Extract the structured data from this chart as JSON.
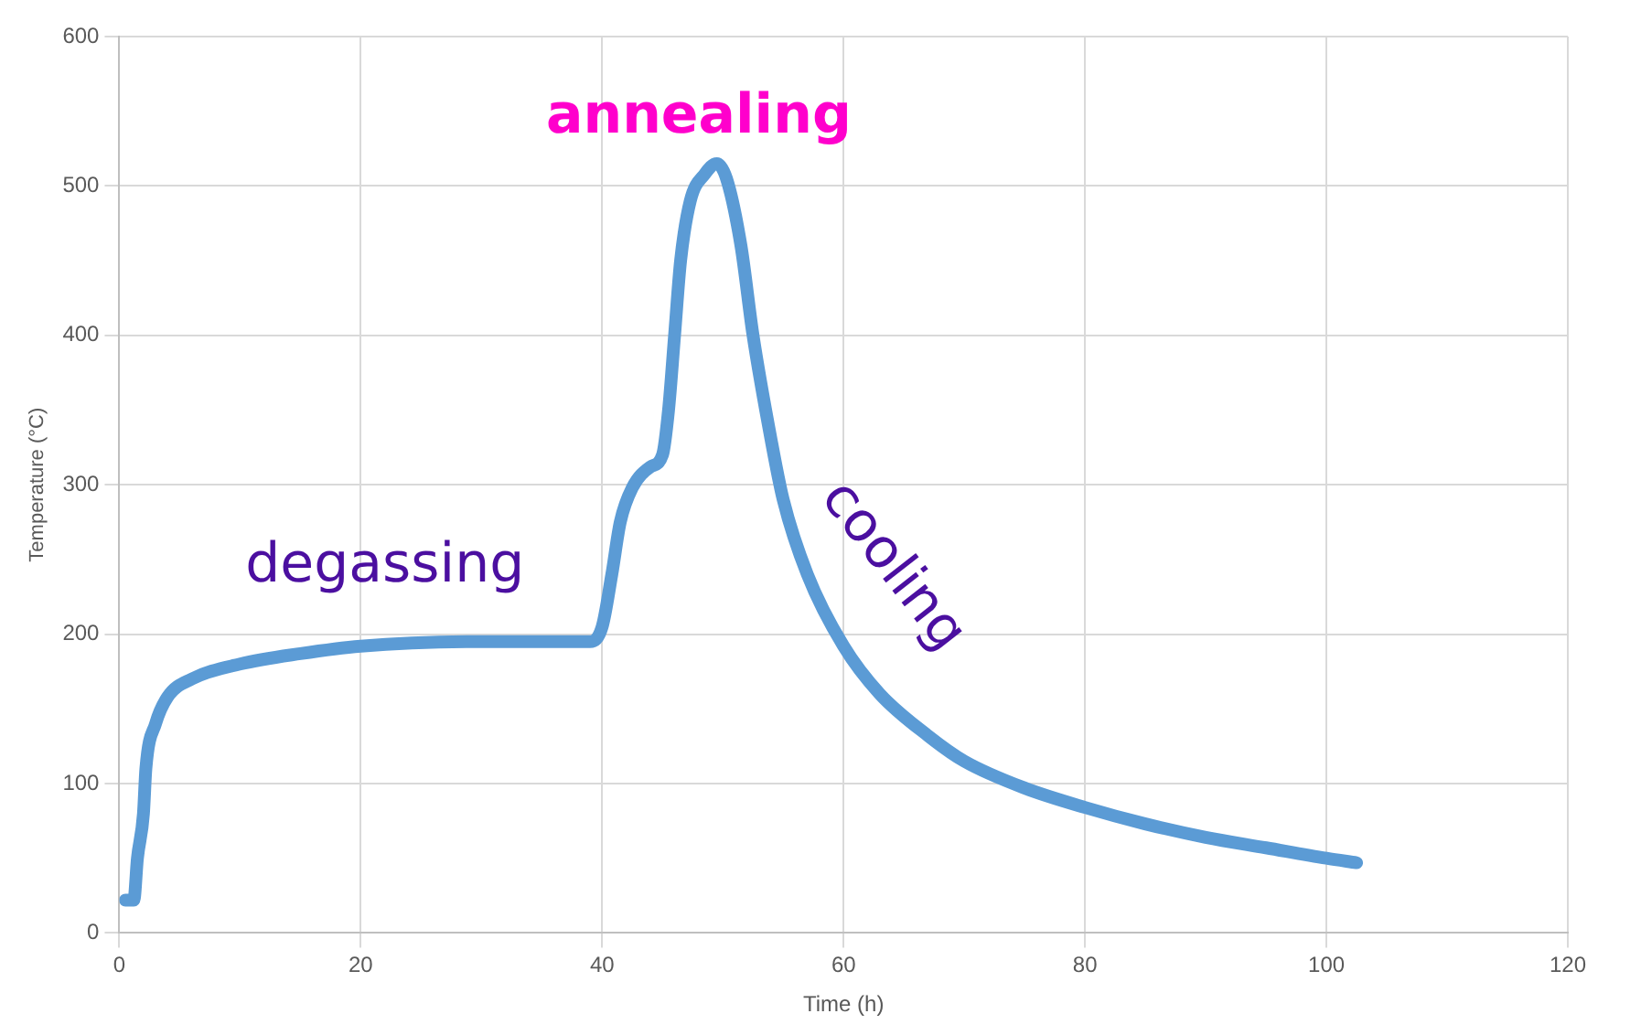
{
  "chart_data": {
    "type": "line",
    "xlabel": "Time (h)",
    "ylabel": "Temperature (°C)",
    "xlim": [
      0,
      120
    ],
    "xticks": [
      0,
      20,
      40,
      60,
      80,
      100,
      120
    ],
    "ylim": [
      0,
      600
    ],
    "yticks": [
      0,
      100,
      200,
      300,
      400,
      500,
      600
    ],
    "grid": true,
    "marker": "none",
    "line_style": "solid",
    "annotations": [
      "annealing",
      "degassing",
      "cooling"
    ],
    "series": [
      {
        "color": "#5b9bd5",
        "x": [
          0.5,
          1.2,
          1.5,
          2,
          2.2,
          3,
          4,
          6,
          10,
          15,
          20,
          30,
          39,
          40,
          40.8,
          41.5,
          42.5,
          44,
          45,
          45.5,
          46,
          46.5,
          47.3,
          48.5,
          49.5,
          50.3,
          51.5,
          52.5,
          54,
          55,
          57,
          60,
          63,
          67,
          70,
          75,
          80,
          85,
          90,
          95,
          100,
          102.5
        ],
        "values": [
          22,
          22,
          50,
          80,
          110,
          140,
          158,
          170,
          180,
          187,
          192,
          195,
          195,
          205,
          240,
          275,
          298,
          312,
          320,
          350,
          400,
          450,
          490,
          508,
          515,
          505,
          460,
          400,
          330,
          290,
          240,
          192,
          160,
          132,
          115,
          97,
          84,
          73,
          64,
          57,
          50,
          47
        ]
      }
    ]
  }
}
